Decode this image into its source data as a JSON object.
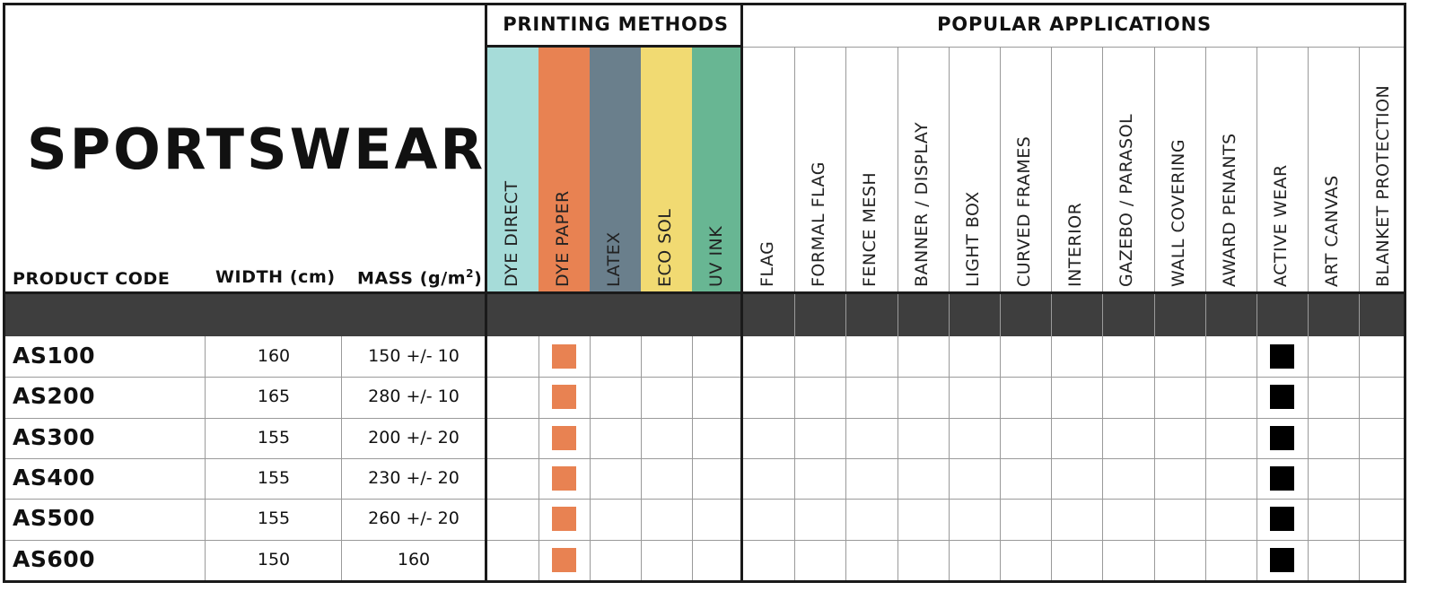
{
  "title": "SPORTSWEAR",
  "columns": {
    "product_code": "PRODUCT CODE",
    "width": "WIDTH (cm)",
    "mass": "MASS (g/m",
    "mass_sup": "2",
    "mass_close": ")"
  },
  "printing_methods": {
    "title": "PRINTING METHODS",
    "items": [
      {
        "label": "DYE DIRECT",
        "color": "#a6dcd9"
      },
      {
        "label": "DYE PAPER",
        "color": "#e88252"
      },
      {
        "label": "LATEX",
        "color": "#6a7f8c"
      },
      {
        "label": "ECO SOL",
        "color": "#f1da72"
      },
      {
        "label": "UV INK",
        "color": "#68b693"
      }
    ]
  },
  "popular_applications": {
    "title": "POPULAR APPLICATIONS",
    "items": [
      "FLAG",
      "FORMAL FLAG",
      "FENCE MESH",
      "BANNER / DISPLAY",
      "LIGHT BOX",
      "CURVED FRAMES",
      "INTERIOR",
      "GAZEBO / PARASOL",
      "WALL COVERING",
      "AWARD PENANTS",
      "ACTIVE WEAR",
      "ART CANVAS",
      "BLANKET PROTECTION"
    ]
  },
  "mark_colors": {
    "printing": "#e88252",
    "application": "#000000"
  },
  "rows": [
    {
      "code": "AS100",
      "width": "160",
      "mass": "150 +/- 10",
      "printing": [
        "DYE PAPER"
      ],
      "applications": [
        "ACTIVE WEAR"
      ]
    },
    {
      "code": "AS200",
      "width": "165",
      "mass": "280 +/- 10",
      "printing": [
        "DYE PAPER"
      ],
      "applications": [
        "ACTIVE WEAR"
      ]
    },
    {
      "code": "AS300",
      "width": "155",
      "mass": "200 +/- 20",
      "printing": [
        "DYE PAPER"
      ],
      "applications": [
        "ACTIVE WEAR"
      ]
    },
    {
      "code": "AS400",
      "width": "155",
      "mass": "230 +/- 20",
      "printing": [
        "DYE PAPER"
      ],
      "applications": [
        "ACTIVE WEAR"
      ]
    },
    {
      "code": "AS500",
      "width": "155",
      "mass": "260 +/- 20",
      "printing": [
        "DYE PAPER"
      ],
      "applications": [
        "ACTIVE WEAR"
      ]
    },
    {
      "code": "AS600",
      "width": "150",
      "mass": "160",
      "printing": [
        "DYE PAPER"
      ],
      "applications": [
        "ACTIVE WEAR"
      ]
    }
  ]
}
